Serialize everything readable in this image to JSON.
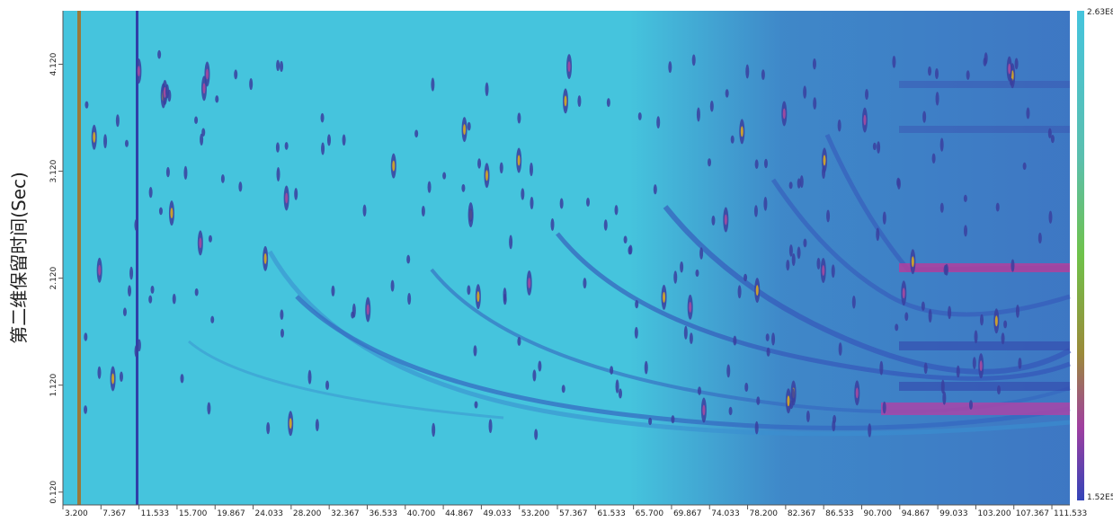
{
  "chart_data": {
    "type": "heatmap",
    "y_label": "第二维保留时间(Sec)",
    "xlim": [
      3.2,
      113.5
    ],
    "ylim": [
      0,
      4.62
    ],
    "xticks": [
      {
        "value": 3.2,
        "label": "3.200"
      },
      {
        "value": 7.367,
        "label": "7.367"
      },
      {
        "value": 11.533,
        "label": "11.533"
      },
      {
        "value": 15.7,
        "label": "15.700"
      },
      {
        "value": 19.867,
        "label": "19.867"
      },
      {
        "value": 24.033,
        "label": "24.033"
      },
      {
        "value": 28.2,
        "label": "28.200"
      },
      {
        "value": 32.367,
        "label": "32.367"
      },
      {
        "value": 36.533,
        "label": "36.533"
      },
      {
        "value": 40.7,
        "label": "40.700"
      },
      {
        "value": 44.867,
        "label": "44.867"
      },
      {
        "value": 49.033,
        "label": "49.033"
      },
      {
        "value": 53.2,
        "label": "53.200"
      },
      {
        "value": 57.367,
        "label": "57.367"
      },
      {
        "value": 61.533,
        "label": "61.533"
      },
      {
        "value": 65.7,
        "label": "65.700"
      },
      {
        "value": 69.867,
        "label": "69.867"
      },
      {
        "value": 74.033,
        "label": "74.033"
      },
      {
        "value": 78.2,
        "label": "78.200"
      },
      {
        "value": 82.367,
        "label": "82.367"
      },
      {
        "value": 86.533,
        "label": "86.533"
      },
      {
        "value": 90.7,
        "label": "90.700"
      },
      {
        "value": 94.867,
        "label": "94.867"
      },
      {
        "value": 99.033,
        "label": "99.033"
      },
      {
        "value": 103.2,
        "label": "103.200"
      },
      {
        "value": 107.367,
        "label": "107.367"
      },
      {
        "value": 111.533,
        "label": "111.533"
      }
    ],
    "yticks": [
      {
        "value": 0.12,
        "label": "0.120"
      },
      {
        "value": 1.12,
        "label": "1.120"
      },
      {
        "value": 2.12,
        "label": "2.120"
      },
      {
        "value": 3.12,
        "label": "3.120"
      },
      {
        "value": 4.12,
        "label": "4.120"
      }
    ],
    "colorbar": {
      "max": {
        "value": 263000000,
        "label": "2.63E8"
      },
      "min": {
        "value": 152000,
        "label": "1.52E5"
      }
    }
  }
}
